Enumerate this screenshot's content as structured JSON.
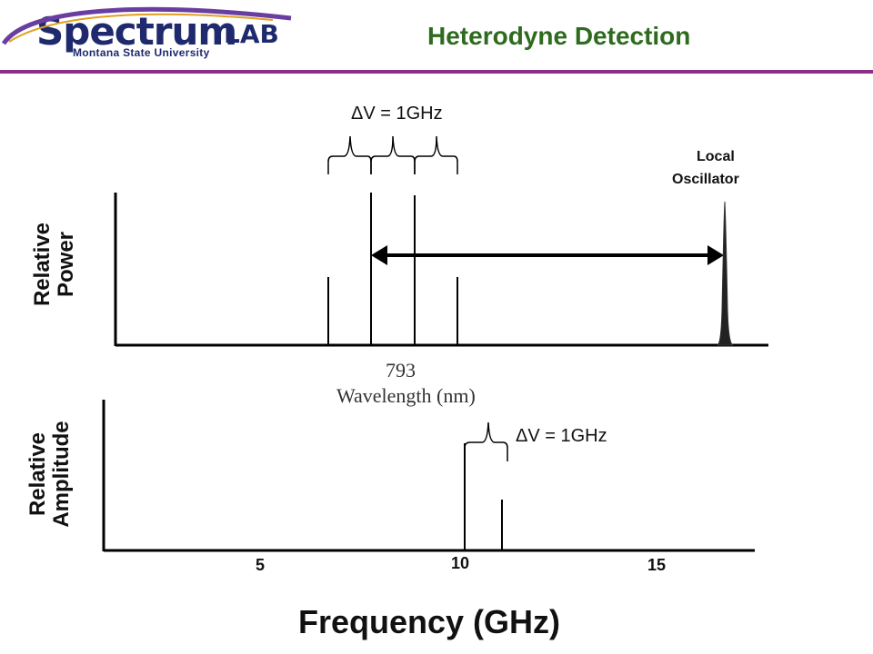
{
  "header": {
    "logo_main": "Spectrum",
    "logo_lab": "LAB",
    "logo_sub": "Montana State University",
    "title": "Heterodyne Detection",
    "colors": {
      "title": "#2e6b1e",
      "rule": "#8b2f8b",
      "logo": "#1f2a6e"
    }
  },
  "top_panel": {
    "spacing_label": "ΔV = 1GHz",
    "lo_label_line1": "Local",
    "lo_label_line2": "Oscillator",
    "y_label_line1": "Relative",
    "y_label_line2": "Power",
    "x_tick_label": "793",
    "x_axis_label": "Wavelength (nm)"
  },
  "bottom_panel": {
    "spacing_label": "ΔV = 1GHz",
    "y_label_line1": "Relative",
    "y_label_line2": "Amplitude",
    "x_ticks": [
      "5",
      "10",
      "15"
    ],
    "x_axis_label": "Frequency (GHz)"
  }
}
